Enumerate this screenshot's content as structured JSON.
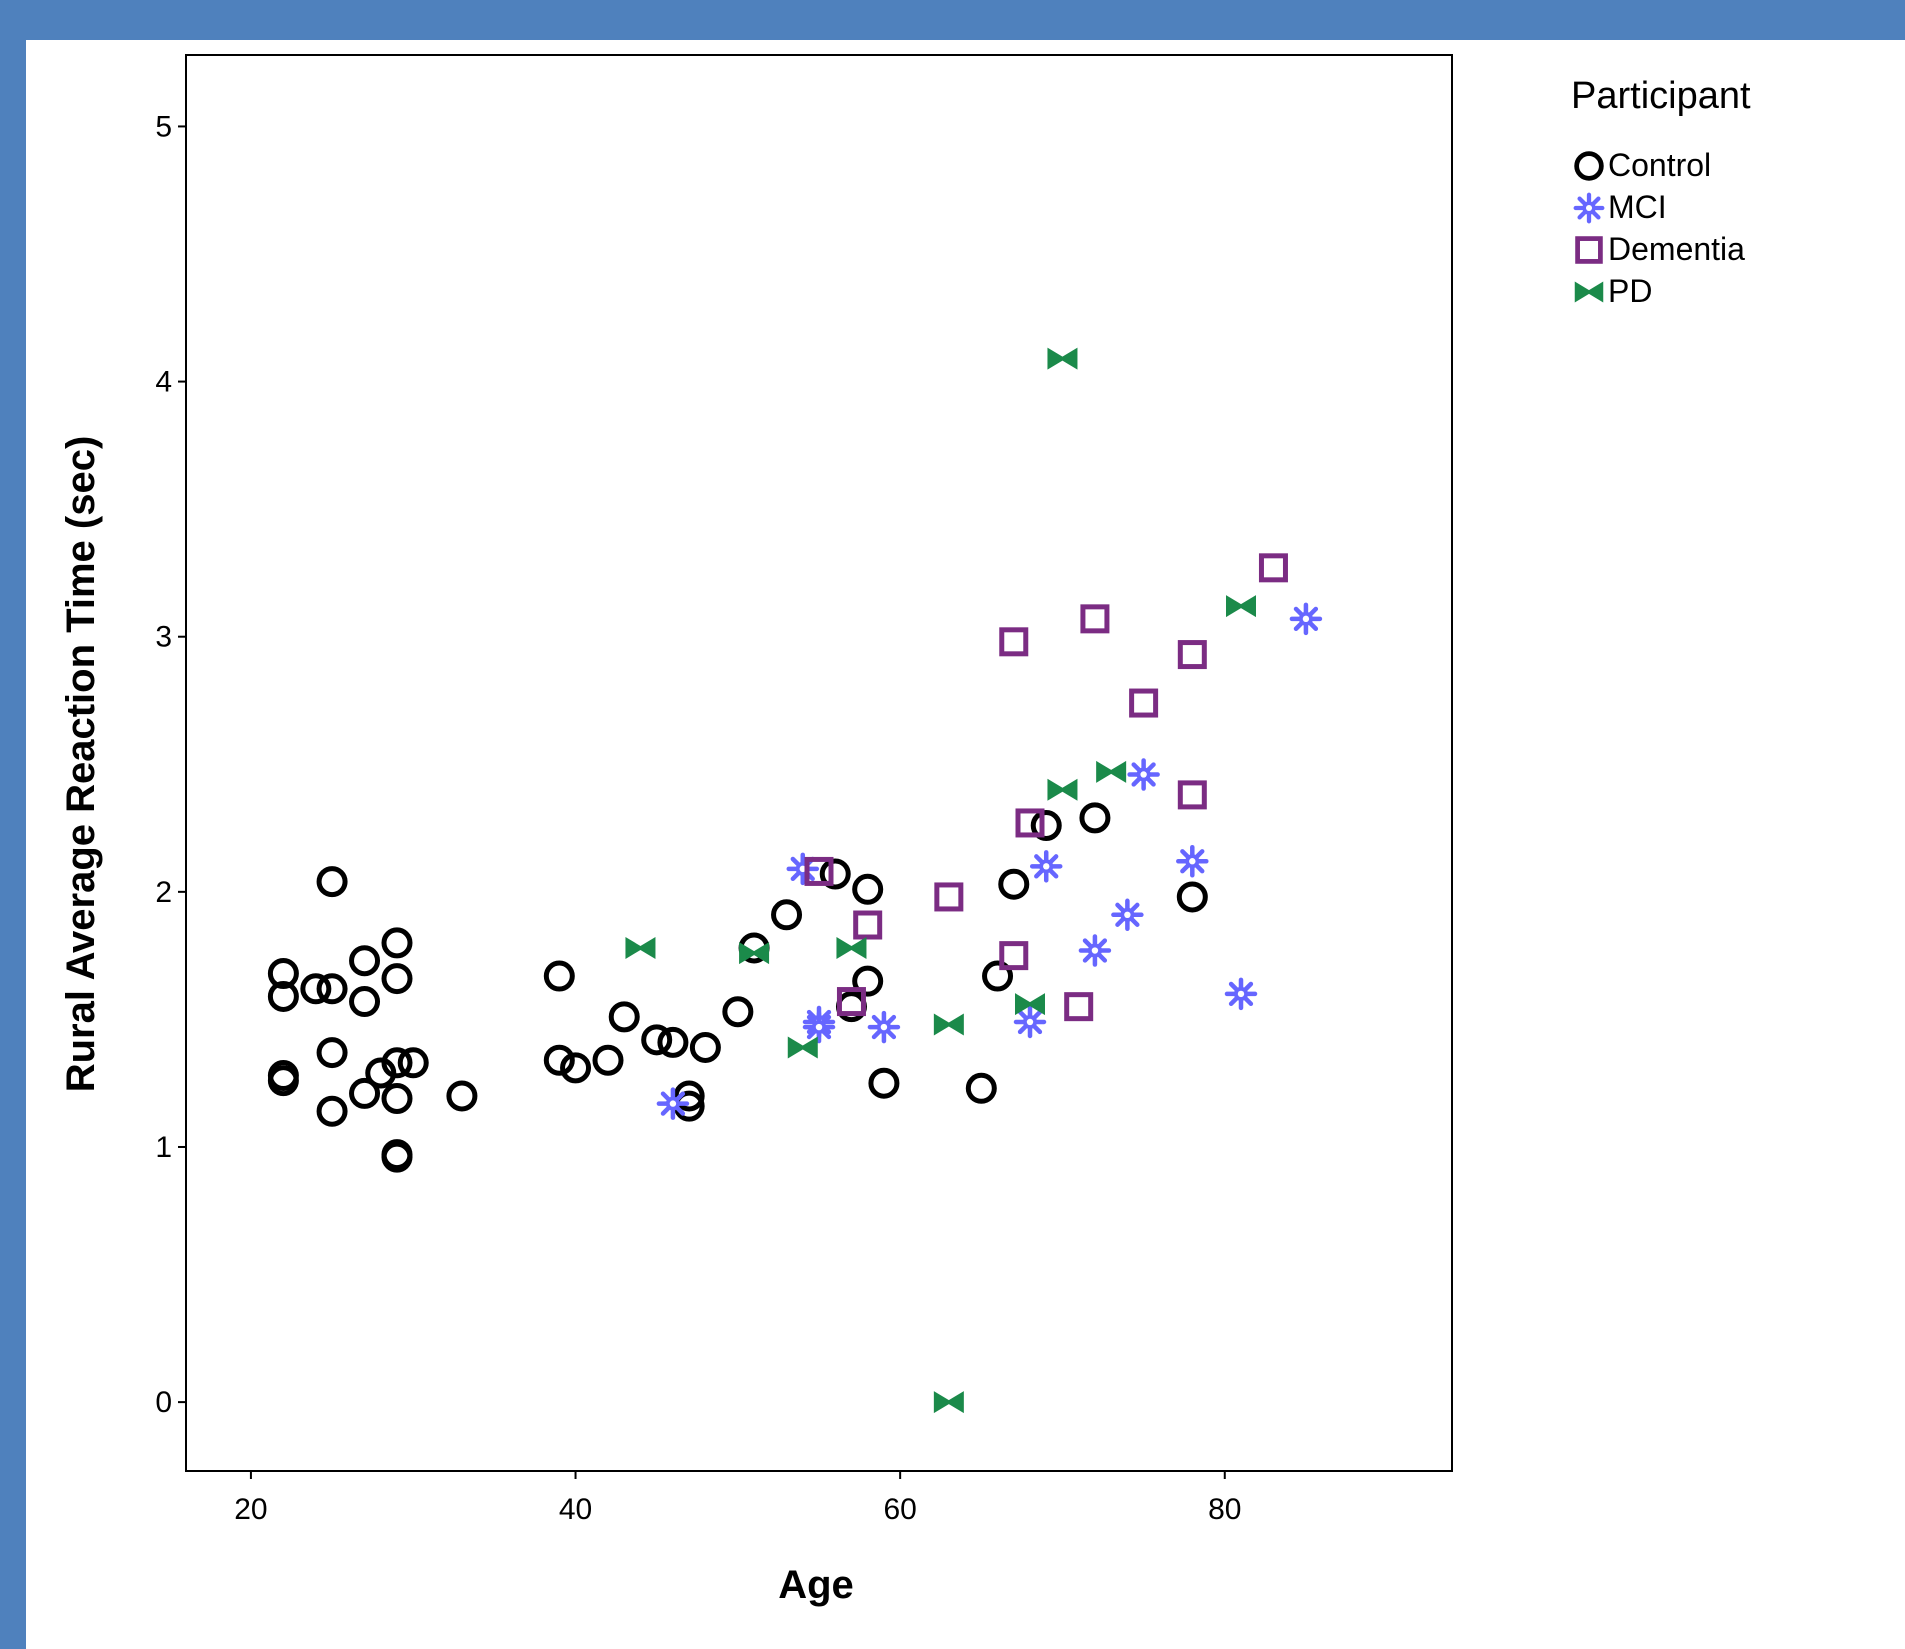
{
  "chart_data": {
    "type": "scatter",
    "title": "",
    "xlabel": "Age",
    "ylabel": "Rural Average Reaction Time (sec)",
    "xlim": [
      16,
      94
    ],
    "ylim": [
      -0.27,
      5.28
    ],
    "xticks": [
      "20",
      "40",
      "60",
      "80"
    ],
    "yticks": [
      "0",
      "1",
      "2",
      "3",
      "4",
      "5"
    ],
    "grid": false,
    "legend_title": "Participant",
    "legend_position": "top-right, outside plot",
    "series": [
      {
        "name": "Control",
        "marker": "circle",
        "color": "#000000",
        "points": [
          [
            22,
            1.68
          ],
          [
            22,
            1.59
          ],
          [
            22,
            1.28
          ],
          [
            22,
            1.26
          ],
          [
            24,
            1.62
          ],
          [
            25,
            1.62
          ],
          [
            25,
            2.04
          ],
          [
            25,
            1.37
          ],
          [
            25,
            1.14
          ],
          [
            27,
            1.73
          ],
          [
            27,
            1.57
          ],
          [
            27,
            1.21
          ],
          [
            28,
            1.29
          ],
          [
            29,
            1.8
          ],
          [
            29,
            1.66
          ],
          [
            29,
            1.33
          ],
          [
            29,
            1.19
          ],
          [
            29,
            0.97
          ],
          [
            29,
            0.96
          ],
          [
            30,
            1.33
          ],
          [
            33,
            1.2
          ],
          [
            39,
            1.67
          ],
          [
            39,
            1.34
          ],
          [
            40,
            1.31
          ],
          [
            42,
            1.34
          ],
          [
            43,
            1.51
          ],
          [
            45,
            1.42
          ],
          [
            46,
            1.41
          ],
          [
            47,
            1.2
          ],
          [
            47,
            1.16
          ],
          [
            48,
            1.39
          ],
          [
            50,
            1.53
          ],
          [
            51,
            1.78
          ],
          [
            53,
            1.91
          ],
          [
            56,
            2.07
          ],
          [
            57,
            1.55
          ],
          [
            58,
            2.01
          ],
          [
            58,
            1.65
          ],
          [
            59,
            1.25
          ],
          [
            65,
            1.23
          ],
          [
            66,
            1.67
          ],
          [
            67,
            2.03
          ],
          [
            69,
            2.26
          ],
          [
            72,
            2.29
          ],
          [
            78,
            1.98
          ]
        ]
      },
      {
        "name": "MCI",
        "marker": "star",
        "color": "#6666ff",
        "points": [
          [
            46,
            1.17
          ],
          [
            54,
            2.09
          ],
          [
            55,
            1.49
          ],
          [
            55,
            1.47
          ],
          [
            59,
            1.47
          ],
          [
            68,
            1.49
          ],
          [
            69,
            2.1
          ],
          [
            72,
            1.77
          ],
          [
            74,
            1.91
          ],
          [
            75,
            2.46
          ],
          [
            78,
            2.12
          ],
          [
            81,
            1.6
          ],
          [
            85,
            3.07
          ]
        ]
      },
      {
        "name": "Dementia",
        "marker": "square",
        "color": "#7b2c83",
        "points": [
          [
            55,
            2.08
          ],
          [
            57,
            1.57
          ],
          [
            58,
            1.87
          ],
          [
            63,
            1.98
          ],
          [
            67,
            2.98
          ],
          [
            67,
            1.75
          ],
          [
            68,
            2.27
          ],
          [
            71,
            1.55
          ],
          [
            72,
            3.07
          ],
          [
            75,
            2.74
          ],
          [
            78,
            2.93
          ],
          [
            78,
            2.38
          ],
          [
            83,
            3.27
          ]
        ]
      },
      {
        "name": "PD",
        "marker": "bowtie",
        "color": "#1b8a4a",
        "points": [
          [
            44,
            1.78
          ],
          [
            51,
            1.76
          ],
          [
            54,
            1.39
          ],
          [
            57,
            1.78
          ],
          [
            63,
            1.48
          ],
          [
            63,
            0.0
          ],
          [
            68,
            1.56
          ],
          [
            70,
            4.09
          ],
          [
            70,
            2.4
          ],
          [
            73,
            2.47
          ],
          [
            81,
            3.12
          ]
        ]
      }
    ]
  }
}
